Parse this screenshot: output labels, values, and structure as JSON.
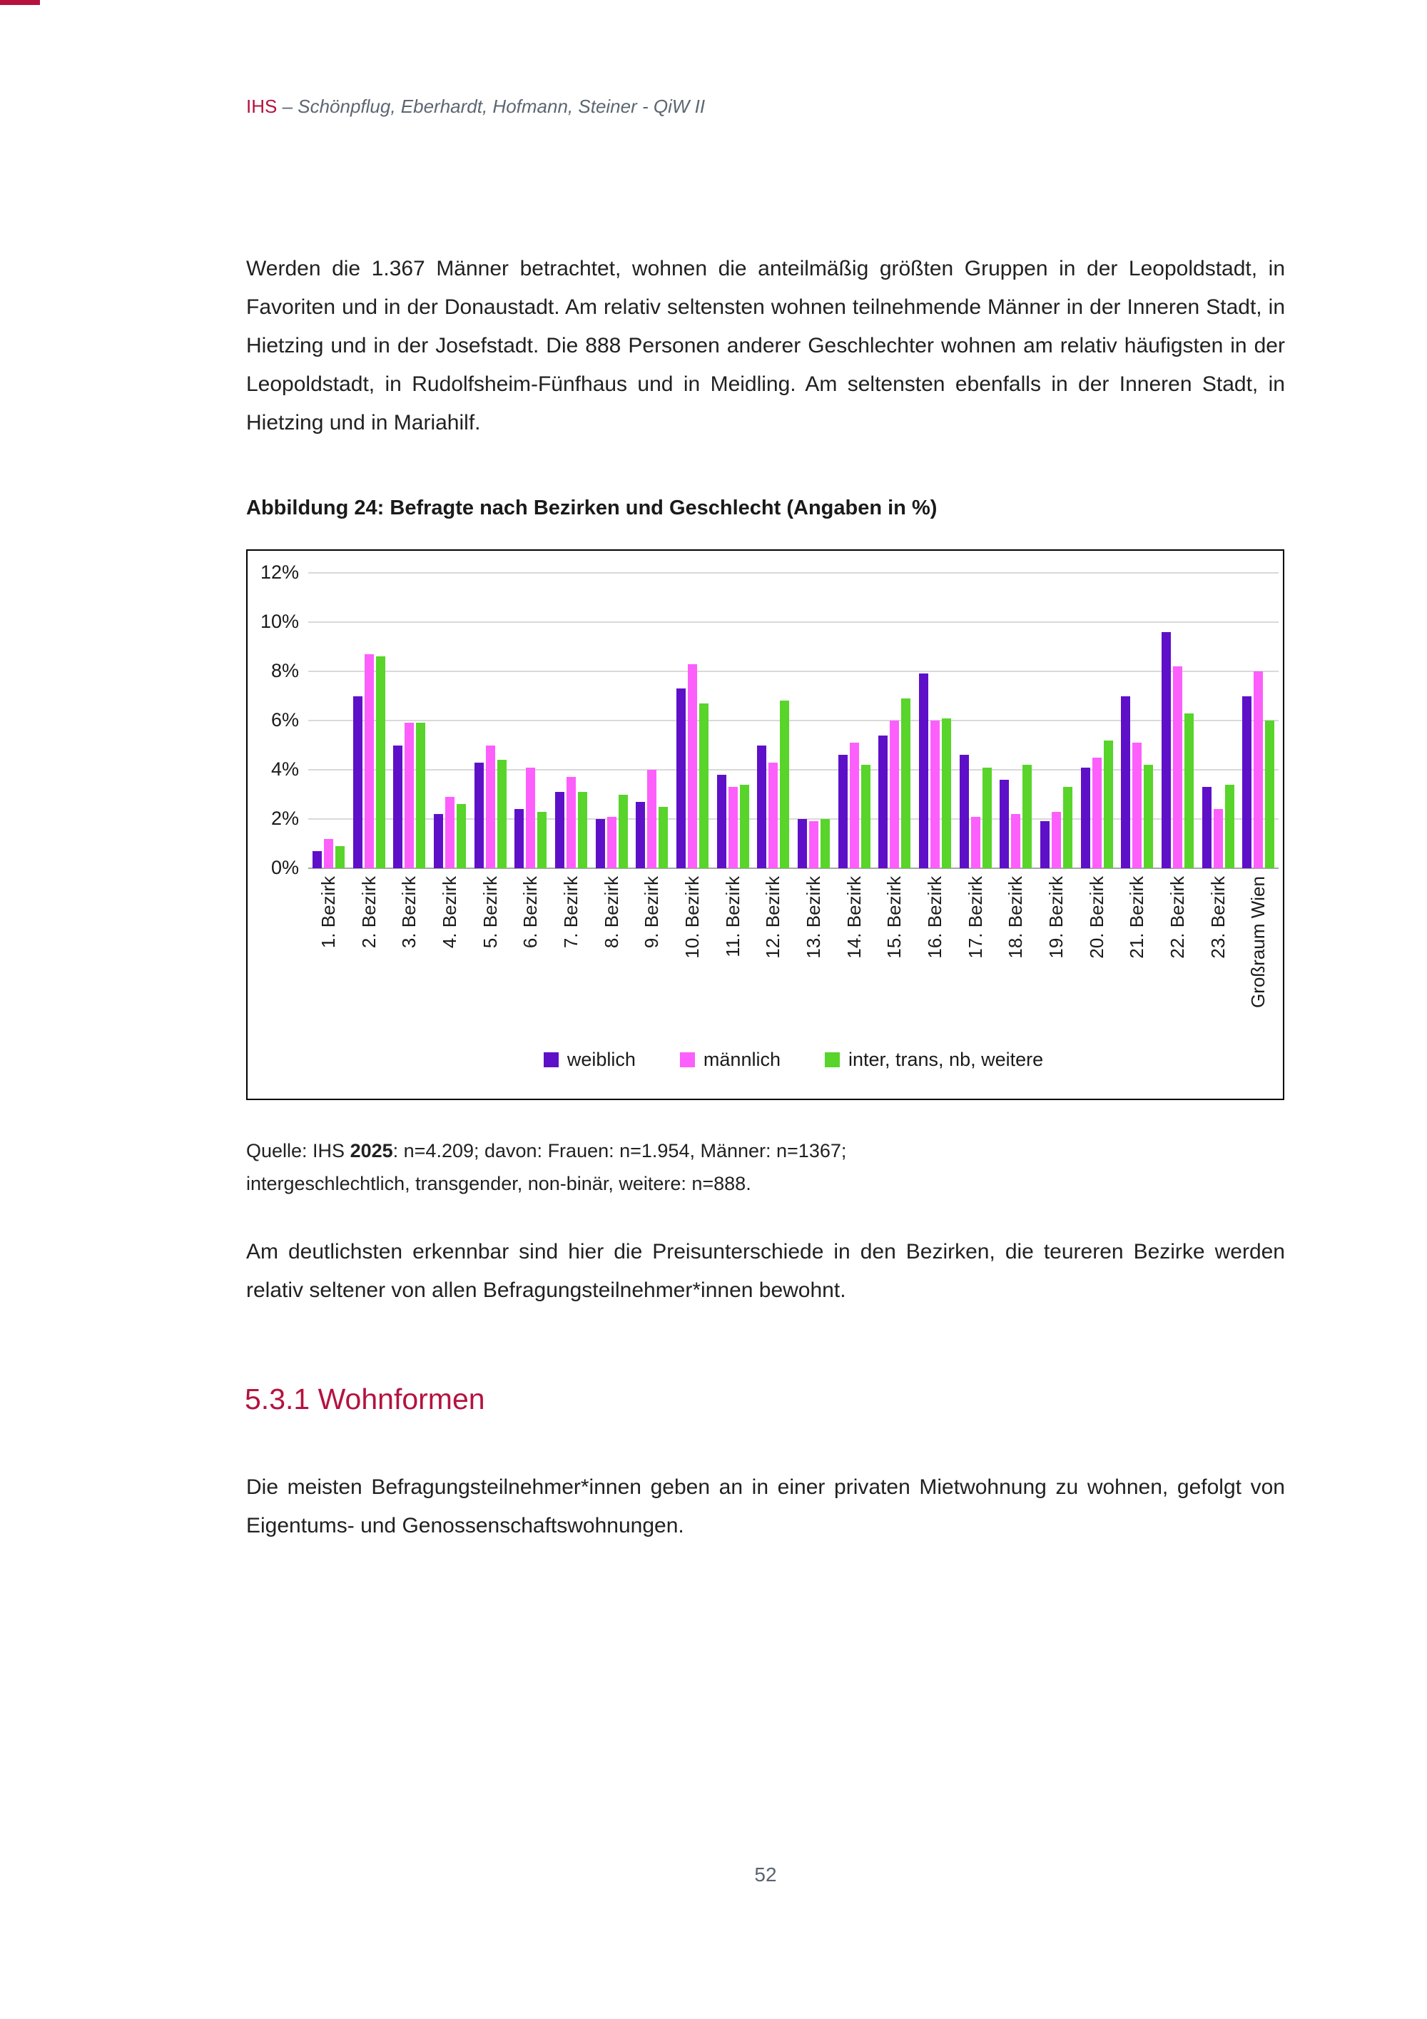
{
  "page": {
    "header": {
      "brand": "IHS",
      "authors": " – Schönpflug, Eberhardt, Hofmann, Steiner - QiW II"
    },
    "paragraph1": "Werden die 1.367 Männer betrachtet, wohnen die anteilmäßig größten Gruppen in der Leopoldstadt, in Favoriten und in der Donaustadt. Am relativ seltensten wohnen teilnehmende Männer in der Inneren Stadt, in Hietzing und in der Josefstadt. Die 888 Personen anderer Geschlechter wohnen am relativ häufigsten in der Leopoldstadt, in Rudolfsheim-Fünfhaus und in Meidling. Am seltensten ebenfalls in der Inneren Stadt, in Hietzing und in Mariahilf.",
    "figure_caption": "Abbildung 24: Befragte nach Bezirken und Geschlecht (Angaben in %)",
    "source": {
      "prefix": "Quelle: IHS ",
      "bold": "2025",
      "rest": ": n=4.209; davon: Frauen: n=1.954, Männer: n=1367;",
      "line2": "intergeschlechtlich, transgender, non-binär, weitere: n=888."
    },
    "paragraph2": "Am deutlichsten erkennbar sind hier die Preisunterschiede in den Bezirken, die teureren Bezirke werden relativ seltener von allen Befragungsteilnehmer*innen bewohnt.",
    "section_heading": "5.3.1 Wohnformen",
    "paragraph3": "Die meisten Befragungsteilnehmer*innen geben an in einer privaten Mietwohnung zu wohnen, gefolgt von Eigentums- und Genossenschaftswohnungen.",
    "page_number": "52"
  },
  "chart_data": {
    "type": "bar",
    "title": "Abbildung 24: Befragte nach Bezirken und Geschlecht (Angaben in %)",
    "categories": [
      "1. Bezirk",
      "2. Bezirk",
      "3. Bezirk",
      "4. Bezirk",
      "5. Bezirk",
      "6. Bezirk",
      "7. Bezirk",
      "8. Bezirk",
      "9. Bezirk",
      "10. Bezirk",
      "11. Bezirk",
      "12. Bezirk",
      "13. Bezirk",
      "14. Bezirk",
      "15. Bezirk",
      "16. Bezirk",
      "17. Bezirk",
      "18. Bezirk",
      "19. Bezirk",
      "20. Bezirk",
      "21. Bezirk",
      "22. Bezirk",
      "23. Bezirk",
      "Großraum Wien"
    ],
    "series": [
      {
        "name": "weiblich",
        "color": "#5e10c8",
        "values": [
          0.7,
          7.0,
          5.0,
          2.2,
          4.3,
          2.4,
          3.1,
          2.0,
          2.7,
          7.3,
          3.8,
          5.0,
          2.0,
          4.6,
          5.4,
          7.9,
          4.6,
          3.6,
          1.9,
          4.1,
          7.0,
          9.6,
          3.3,
          7.0
        ]
      },
      {
        "name": "männlich",
        "color": "#fc5ffb",
        "values": [
          1.2,
          8.7,
          5.9,
          2.9,
          5.0,
          4.1,
          3.7,
          2.1,
          4.0,
          8.3,
          3.3,
          4.3,
          1.9,
          5.1,
          6.0,
          6.0,
          2.1,
          2.2,
          2.3,
          4.5,
          5.1,
          8.2,
          2.4,
          8.0
        ]
      },
      {
        "name": "inter, trans, nb, weitere",
        "color": "#58d42b",
        "values": [
          0.9,
          8.6,
          5.9,
          2.6,
          4.4,
          2.3,
          3.1,
          3.0,
          2.5,
          6.7,
          3.4,
          6.8,
          2.0,
          4.2,
          6.9,
          6.1,
          4.1,
          4.2,
          3.3,
          5.2,
          4.2,
          6.3,
          3.4,
          6.0
        ]
      }
    ],
    "ylabel_ticks": [
      "0%",
      "2%",
      "4%",
      "6%",
      "8%",
      "10%",
      "12%"
    ],
    "ylim": [
      0,
      12
    ],
    "ytick_step": 2,
    "grid": true,
    "legend_position": "bottom",
    "gridline_color": "#d9d9d9",
    "frame_color": "#000000"
  }
}
